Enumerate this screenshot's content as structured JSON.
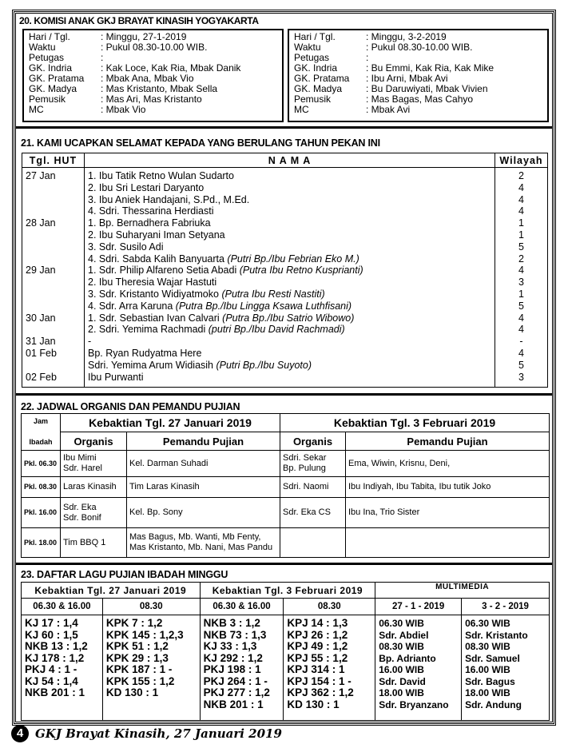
{
  "s20": {
    "title": "20. KOMISI ANAK GKJ BRAYAT KINASIH YOGYAKARTA",
    "left": [
      [
        "Hari / Tgl.",
        ": Minggu, 27-1-2019"
      ],
      [
        "Waktu",
        ": Pukul 08.30-10.00 WIB."
      ],
      [
        "Petugas",
        ":"
      ],
      [
        "GK. Indria",
        ": Kak Loce, Kak Ria, Mbak Danik"
      ],
      [
        "GK. Pratama",
        ": Mbak Ana, Mbak Vio"
      ],
      [
        "GK. Madya",
        ": Mas Kristanto, Mbak Sella"
      ],
      [
        "Pemusik",
        ": Mas Ari, Mas Kristanto"
      ],
      [
        "MC",
        ": Mbak Vio"
      ]
    ],
    "right": [
      [
        "Hari / Tgl.",
        ": Minggu, 3-2-2019"
      ],
      [
        "Waktu",
        ": Pukul 08.30-10.00 WIB."
      ],
      [
        "Petugas",
        ":"
      ],
      [
        "GK. Indria",
        ": Bu Emmi, Kak Ria, Kak Mike"
      ],
      [
        "GK. Pratama",
        ": Ibu Arni, Mbak Avi"
      ],
      [
        "GK. Madya",
        ": Bu Daruwiyati, Mbak Vivien"
      ],
      [
        "Pemusik",
        ": Mas Bagas, Mas Cahyo"
      ],
      [
        "MC",
        ": Mbak Avi"
      ]
    ]
  },
  "s21": {
    "title": "21. KAMI UCAPKAN SELAMAT KEPADA YANG BERULANG TAHUN PEKAN INI",
    "headers": [
      "Tgl. HUT",
      "N A M A",
      "Wilayah"
    ],
    "rows": [
      [
        "27   Jan",
        "1. Ibu Tatik Retno Wulan Sudarto",
        "",
        "2"
      ],
      [
        "",
        "2. Ibu Sri Lestari Daryanto",
        "",
        "4"
      ],
      [
        "",
        "3. Ibu Aniek Handajani, S.Pd., M.Ed.",
        "",
        "4"
      ],
      [
        "",
        "4. Sdri. Thessarina Herdiasti",
        "",
        "4"
      ],
      [
        "28   Jan",
        "1. Bp. Bernadhera Fabriuka",
        "",
        "1"
      ],
      [
        "",
        "2. Ibu Suharyani Iman Setyana",
        "",
        "1"
      ],
      [
        "",
        "3. Sdr. Susilo Adi",
        "",
        "5"
      ],
      [
        "",
        "4. Sdri. Sabda Kalih Banyuarta ",
        "(Putri Bp./Ibu Febrian Eko M.)",
        "2"
      ],
      [
        "29   Jan",
        "1. Sdr. Philip Alfareno Setia Abadi ",
        "(Putra Ibu Retno Kusprianti)",
        "4"
      ],
      [
        "",
        "2. Ibu Theresia Wajar Hastuti",
        "",
        "3"
      ],
      [
        "",
        "3. Sdr. Kristanto Widiyatmoko ",
        "(Putra Ibu Resti Nastiti)",
        "1"
      ],
      [
        "",
        "4. Sdr. Arra Karuna ",
        "(Putra Bp./Ibu Lingga Ksawa Luthfisani)",
        "5"
      ],
      [
        "30   Jan",
        "1. Sdr. Sebastian Ivan Calvari ",
        "(Putra Bp./Ibu Satrio Wibowo)",
        "4"
      ],
      [
        "",
        "2. Sdri. Yemima Rachmadi ",
        "(putri Bp./Ibu David Rachmadi)",
        "4"
      ],
      [
        "31   Jan",
        "-",
        "",
        "-"
      ],
      [
        "01   Feb",
        "Bp. Ryan Rudyatma Here",
        "",
        "4"
      ],
      [
        "",
        "Sdri. Yemima Arum Widiasih ",
        "(Putri Bp./Ibu Suyoto)",
        "5"
      ],
      [
        "02   Feb",
        "Ibu Purwanti",
        "",
        "3"
      ]
    ]
  },
  "s22": {
    "title": "22. JADWAL ORGANIS DAN PEMANDU PUJIAN",
    "jam": [
      "Jam",
      "Ibadah"
    ],
    "svc1": "Kebaktian Tgl. 27 Januari 2019",
    "svc2": "Kebaktian Tgl. 3 Februari 2019",
    "organis": "Organis",
    "pemandu": "Pemandu Pujian",
    "rows": [
      [
        "Pkl. 06.30",
        "Ibu Mimi\nSdr. Harel",
        "Kel. Darman Suhadi",
        "Sdri. Sekar\nBp. Pulung",
        "Ema, Wiwin, Krisnu, Deni,"
      ],
      [
        "Pkl. 08.30",
        "Laras Kinasih",
        "Tim Laras Kinasih",
        "Sdri. Naomi",
        "Ibu Indiyah, Ibu Tabita, Ibu tutik Joko"
      ],
      [
        "Pkl. 16.00",
        "Sdr. Eka\nSdr. Bonif",
        "Kel. Bp. Sony",
        "Sdr. Eka  CS",
        "Ibu Ina, Trio Sister"
      ],
      [
        "Pkl. 18.00",
        "Tim BBQ 1",
        "Mas Bagus, Mb. Wanti, Mb Fenty,\nMas Kristanto, Mb. Nani, Mas Pandu",
        "",
        ""
      ]
    ]
  },
  "s23": {
    "title": "23. DAFTAR LAGU PUJIAN IBADAH MINGGU",
    "headers": [
      "Kebaktian Tgl.  27 Januari 2019",
      "Kebaktian Tgl. 3 Februari 2019",
      "MULTIMEDIA"
    ],
    "sub": [
      "06.30 & 16.00",
      "08.30",
      "06.30 & 16.00",
      "08.30",
      "27 - 1 - 2019",
      "3 - 2 - 2019"
    ],
    "cols": [
      [
        "KJ 17 : 1,4",
        "KJ 60 : 1,5",
        "NKB 13 : 1,2",
        "KJ 178 : 1,2",
        "PKJ 4 : 1 -",
        "KJ 54 : 1,4",
        "NKB 201 : 1"
      ],
      [
        "KPK 7 : 1,2",
        "KPK 145 : 1,2,3",
        "KPK 51 : 1,2",
        "KPK 29 : 1,3",
        "KPK 187 : 1 -",
        "KPK 155 : 1,2",
        "KD 130 : 1"
      ],
      [
        "NKB 3 : 1,2",
        "NKB 73 : 1,3",
        "KJ 33 : 1,3",
        "KJ 292 : 1,2",
        "PKJ 198 : 1",
        "PKJ 264 : 1 -",
        "PKJ 277 : 1,2",
        "NKB 201 : 1"
      ],
      [
        "KPJ 14 : 1,3",
        "KPJ 26 : 1,2",
        "KPJ 49 : 1,2",
        "KPJ 55 : 1,2",
        "KPJ 314 : 1",
        "KPJ 154 : 1 -",
        "KPJ 362 : 1,2",
        "KD 130 : 1"
      ],
      [
        "06.30 WIB",
        "Sdr. Abdiel",
        "08.30 WIB",
        "Bp. Adrianto",
        "16.00 WIB",
        "Sdr. David",
        "18.00 WIB",
        "Sdr. Bryanzano"
      ],
      [
        "06.30 WIB",
        "Sdr. Kristanto",
        "08.30 WIB",
        "Sdr. Samuel",
        "16.00 WIB",
        "Sdr. Bagus",
        "18.00 WIB",
        "Sdr. Andung"
      ]
    ]
  },
  "footer": {
    "page": "4",
    "text": "GKJ Brayat Kinasih, 27 Januari 2019"
  }
}
